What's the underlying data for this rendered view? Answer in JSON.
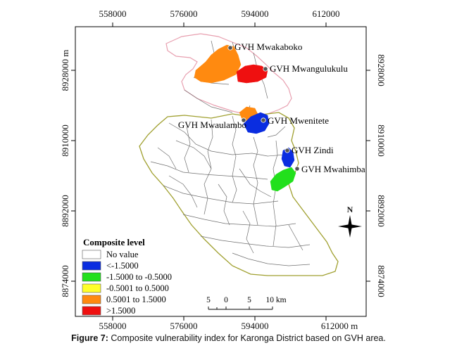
{
  "map": {
    "top_ticks": [
      "558000",
      "576000",
      "594000",
      "612000"
    ],
    "bottom_ticks": [
      "558000",
      "576000",
      "594000",
      "612000 m"
    ],
    "left_ticks": [
      "8928000 m",
      "8910000",
      "8892000",
      "8874000"
    ],
    "right_ticks": [
      "8928000",
      "8910000",
      "8892000",
      "8874000"
    ],
    "north_label": "N",
    "places": [
      {
        "name": "GVH Mwakaboko",
        "label": "GVH Mwakaboko"
      },
      {
        "name": "GVH Mwangulukulu",
        "label": "GVH Mwangulukulu"
      },
      {
        "name": "GVH Mwenitete",
        "label": "GVH Mwenitete"
      },
      {
        "name": "GVH Mwaulambo",
        "label": "GVH Mwaulambo"
      },
      {
        "name": "GVH Zindi",
        "label": "GVH Zindi"
      },
      {
        "name": "GVH Mwahimba",
        "label": "GVH Mwahimba"
      }
    ],
    "legend": {
      "title": "Composite level",
      "items": [
        {
          "label": "No value",
          "color": "#ffffff"
        },
        {
          "label": "<-1.5000",
          "color": "#0a2de0"
        },
        {
          "label": "-1.5000 to -0.5000",
          "color": "#22e01c"
        },
        {
          "label": "-0.5001 to 0.5000",
          "color": "#ffff2a"
        },
        {
          "label": "0.5001 to 1.5000",
          "color": "#ff8a10"
        },
        {
          "label": ">1.5000",
          "color": "#ef1010"
        }
      ]
    },
    "scale_bar": {
      "ticks": [
        "5",
        "0",
        "5",
        "10 km"
      ]
    }
  },
  "caption": {
    "label": "Figure 7:",
    "text": " Composite vulnerability index for Karonga District based on GVH area."
  }
}
